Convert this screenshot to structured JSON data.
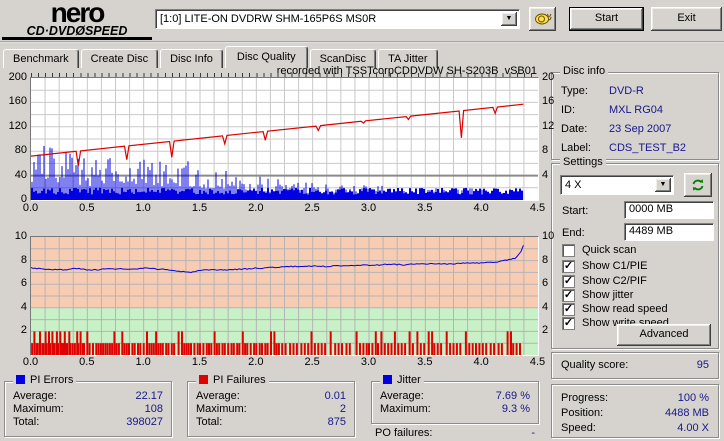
{
  "window": {
    "brand": "nero",
    "product": "CD·DVDØSPEED"
  },
  "toolbar": {
    "drive": "[1:0]  LITE-ON DVDRW SHM-165P6S MS0R",
    "speed_icon": "snail-icon",
    "start_label": "Start",
    "exit_label": "Exit"
  },
  "tabs": [
    {
      "label": "Benchmark",
      "active": false
    },
    {
      "label": "Create Disc",
      "active": false
    },
    {
      "label": "Disc Info",
      "active": false
    },
    {
      "label": "Disc Quality",
      "active": true
    },
    {
      "label": "ScanDisc",
      "active": false
    },
    {
      "label": "TA Jitter",
      "active": false
    }
  ],
  "colors": {
    "value_navy": "#17178c",
    "pie_blue": "#0000e0",
    "pif_red": "#e00000",
    "speed_red": "#dd0000",
    "zone_pink": "#f7ccb3",
    "zone_green": "#c9f1c7",
    "window_gray": "#d6d3ce"
  },
  "chart_data": [
    {
      "type": "area",
      "title": "recorded with TSSTcorpCDDVDW SH-S203B  vSB01",
      "x_range": [
        0,
        4.5
      ],
      "x_ticks": [
        "0.0",
        "0.5",
        "1.0",
        "1.5",
        "2.0",
        "2.5",
        "3.0",
        "3.5",
        "4.0",
        "4.5"
      ],
      "x_end_of_data": 4.37,
      "y_left": {
        "label": "PI Errors",
        "range": [
          0,
          200
        ],
        "ticks": [
          200,
          160,
          120,
          80,
          40,
          0
        ]
      },
      "y_right": {
        "label": "Speed X",
        "range": [
          0,
          20
        ],
        "ticks": [
          20,
          16,
          12,
          8,
          4
        ]
      },
      "grid": {
        "x_step": 0.125,
        "y_step": 20,
        "emphasized_y": 40
      },
      "series": [
        {
          "name": "PI Errors",
          "type": "spikes",
          "color": "#0000e0",
          "x_step": 0.05,
          "values": [
            85,
            108,
            95,
            90,
            85,
            80,
            88,
            75,
            70,
            72,
            65,
            68,
            62,
            60,
            75,
            90,
            85,
            70,
            65,
            70,
            68,
            60,
            70,
            65,
            60,
            58,
            55,
            60,
            65,
            55,
            50,
            52,
            48,
            45,
            50,
            45,
            42,
            40,
            38,
            42,
            40,
            38,
            36,
            34,
            38,
            35,
            32,
            30,
            32,
            30,
            28,
            30,
            28,
            26,
            28,
            25,
            26,
            24,
            26,
            25,
            24,
            25,
            23,
            24,
            22,
            24,
            23,
            22,
            24,
            22,
            21,
            22,
            20,
            22,
            21,
            20,
            22,
            20,
            19,
            20,
            18,
            20,
            19,
            18,
            20,
            22,
            25,
            28
          ]
        },
        {
          "name": "Write speed",
          "type": "line",
          "color": "#dd0000",
          "start_x": 0,
          "start_v": 7.2,
          "end_x": 4.37,
          "end_v": 15.7,
          "dips": [
            [
              0.42,
              5.6
            ],
            [
              0.85,
              6.6
            ],
            [
              1.25,
              7.0
            ],
            [
              1.72,
              9.2
            ],
            [
              2.08,
              9.8
            ],
            [
              2.55,
              11.4
            ],
            [
              2.95,
              12.6
            ],
            [
              3.35,
              13.2
            ],
            [
              3.82,
              10.2
            ],
            [
              4.12,
              14.2
            ]
          ]
        }
      ]
    },
    {
      "type": "line+bars",
      "x_range": [
        0,
        4.5
      ],
      "x_ticks": [
        "0.0",
        "0.5",
        "1.0",
        "1.5",
        "2.0",
        "2.5",
        "3.0",
        "3.5",
        "4.0",
        "4.5"
      ],
      "x_end_of_data": 4.37,
      "y": {
        "range": [
          0,
          10
        ],
        "ticks": [
          10,
          8,
          6,
          4,
          2
        ]
      },
      "grid": {
        "x_step": 0.125,
        "y_step": 1
      },
      "zones": [
        {
          "from": 4,
          "to": 10,
          "color": "#f7ccb3"
        },
        {
          "from": 0,
          "to": 4,
          "color": "#c9f1c7"
        }
      ],
      "series": [
        {
          "name": "Jitter",
          "type": "line",
          "color": "#0000e0",
          "x_step": 0.1,
          "end_value": 9.3,
          "values": [
            7.4,
            7.3,
            7.25,
            7.2,
            7.35,
            7.2,
            7.25,
            7.3,
            7.3,
            7.25,
            7.35,
            7.3,
            7.25,
            7.1,
            7.0,
            7.15,
            7.2,
            7.2,
            7.25,
            7.3,
            7.35,
            7.4,
            7.45,
            7.5,
            7.5,
            7.55,
            7.5,
            7.55,
            7.6,
            7.6,
            7.6,
            7.65,
            7.7,
            7.65,
            7.7,
            7.7,
            7.75,
            7.7,
            7.75,
            7.8,
            7.8,
            7.85,
            8.0,
            8.2,
            9.3
          ]
        },
        {
          "name": "PI Failures",
          "type": "bars",
          "color": "#e00000",
          "bar_value_2_x": [
            0.03,
            0.08,
            0.13,
            0.16,
            0.19,
            0.23,
            0.26,
            0.3,
            0.34,
            0.41,
            0.44,
            0.5,
            0.74,
            0.81,
            1.03,
            1.11,
            1.31,
            1.34,
            1.63,
            1.88,
            2.13,
            2.16,
            2.49,
            2.66,
            2.89,
            3.06,
            3.11,
            3.23,
            3.36,
            3.43,
            3.53,
            3.56,
            3.69,
            3.86,
            4.23,
            4.26
          ],
          "bar_value_1_x": [
            0.01,
            0.05,
            0.06,
            0.1,
            0.11,
            0.14,
            0.17,
            0.2,
            0.21,
            0.24,
            0.27,
            0.28,
            0.29,
            0.31,
            0.32,
            0.35,
            0.37,
            0.39,
            0.42,
            0.46,
            0.47,
            0.52,
            0.55,
            0.58,
            0.6,
            0.62,
            0.64,
            0.66,
            0.68,
            0.7,
            0.72,
            0.76,
            0.78,
            0.83,
            0.85,
            0.87,
            0.9,
            0.92,
            0.95,
            0.97,
            1.0,
            1.05,
            1.07,
            1.09,
            1.13,
            1.15,
            1.17,
            1.2,
            1.22,
            1.25,
            1.27,
            1.36,
            1.38,
            1.4,
            1.42,
            1.45,
            1.48,
            1.5,
            1.53,
            1.56,
            1.58,
            1.6,
            1.65,
            1.67,
            1.7,
            1.72,
            1.75,
            1.78,
            1.8,
            1.83,
            1.85,
            1.9,
            1.92,
            1.95,
            1.98,
            2.0,
            2.03,
            2.05,
            2.08,
            2.1,
            2.18,
            2.2,
            2.23,
            2.26,
            2.3,
            2.33,
            2.36,
            2.4,
            2.43,
            2.46,
            2.52,
            2.55,
            2.58,
            2.61,
            2.7,
            2.73,
            2.76,
            2.8,
            2.83,
            2.92,
            2.95,
            2.98,
            3.0,
            3.03,
            3.08,
            3.14,
            3.17,
            3.2,
            3.26,
            3.29,
            3.32,
            3.39,
            3.46,
            3.49,
            3.58,
            3.61,
            3.64,
            3.72,
            3.75,
            3.78,
            3.81,
            3.89,
            3.92,
            3.95,
            3.98,
            4.01,
            4.04,
            4.08,
            4.11,
            4.15,
            4.18,
            4.28,
            4.31,
            4.34
          ]
        }
      ]
    }
  ],
  "disc_info": {
    "title": "Disc info",
    "rows": [
      {
        "label": "Type:",
        "value": "DVD-R"
      },
      {
        "label": "ID:",
        "value": "MXL RG04"
      },
      {
        "label": "Date:",
        "value": "23 Sep 2007"
      },
      {
        "label": "Label:",
        "value": "CDS_TEST_B2"
      }
    ]
  },
  "settings": {
    "title": "Settings",
    "speed_select": "4 X",
    "refresh_icon": "refresh-icon",
    "start_label": "Start:",
    "start_value": "0000 MB",
    "end_label": "End:",
    "end_value": "4489 MB",
    "checkboxes": [
      {
        "label": "Quick scan",
        "mark": ""
      },
      {
        "label": "Show C1/PIE",
        "mark": "✓"
      },
      {
        "label": "Show C2/PIF",
        "mark": "✓"
      },
      {
        "label": "Show jitter",
        "mark": "✓"
      },
      {
        "label": "Show read speed",
        "mark": "✓"
      },
      {
        "label": "Show write speed",
        "mark": "✓"
      }
    ],
    "advanced_label": "Advanced"
  },
  "quality": {
    "label": "Quality score:",
    "value": "95"
  },
  "stats": {
    "pi_errors": {
      "title": "PI Errors",
      "swatch": "#0000e0",
      "rows": [
        {
          "label": "Average:",
          "value": "22.17"
        },
        {
          "label": "Maximum:",
          "value": "108"
        },
        {
          "label": "Total:",
          "value": "398027"
        }
      ]
    },
    "pi_failures": {
      "title": "PI Failures",
      "swatch": "#e00000",
      "rows": [
        {
          "label": "Average:",
          "value": "0.01"
        },
        {
          "label": "Maximum:",
          "value": "2"
        },
        {
          "label": "Total:",
          "value": "875"
        }
      ]
    },
    "jitter": {
      "title": "Jitter",
      "swatch": "#0000e0",
      "rows": [
        {
          "label": "Average:",
          "value": "7.69 %"
        },
        {
          "label": "Maximum:",
          "value": "9.3 %"
        }
      ]
    },
    "po_failures": {
      "label": "PO failures:",
      "value": "-"
    }
  },
  "progress": {
    "rows": [
      {
        "label": "Progress:",
        "value": "100 %"
      },
      {
        "label": "Position:",
        "value": "4488 MB"
      },
      {
        "label": "Speed:",
        "value": "4.00 X"
      }
    ]
  }
}
